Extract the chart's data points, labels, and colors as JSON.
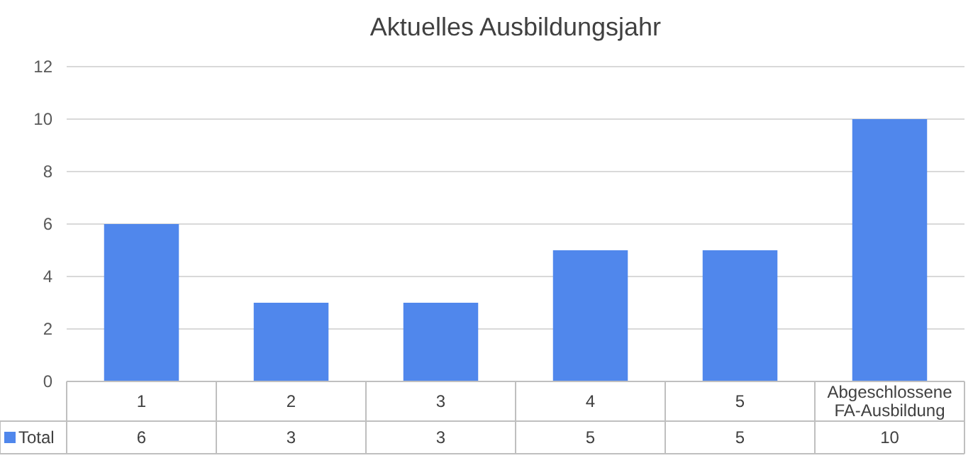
{
  "chart_data": {
    "type": "bar",
    "title": "Aktuelles Ausbildungsjahr",
    "categories": [
      "1",
      "2",
      "3",
      "4",
      "5",
      "Abgeschlossene FA-Ausbildung"
    ],
    "series": [
      {
        "name": "Total",
        "color": "#5087ec",
        "values": [
          6,
          3,
          3,
          5,
          5,
          10
        ]
      }
    ],
    "ylim": [
      0,
      12
    ],
    "yticks": [
      0,
      2,
      4,
      6,
      8,
      10,
      12
    ],
    "grid": "y",
    "legend": "bottom",
    "data_labels": true
  }
}
